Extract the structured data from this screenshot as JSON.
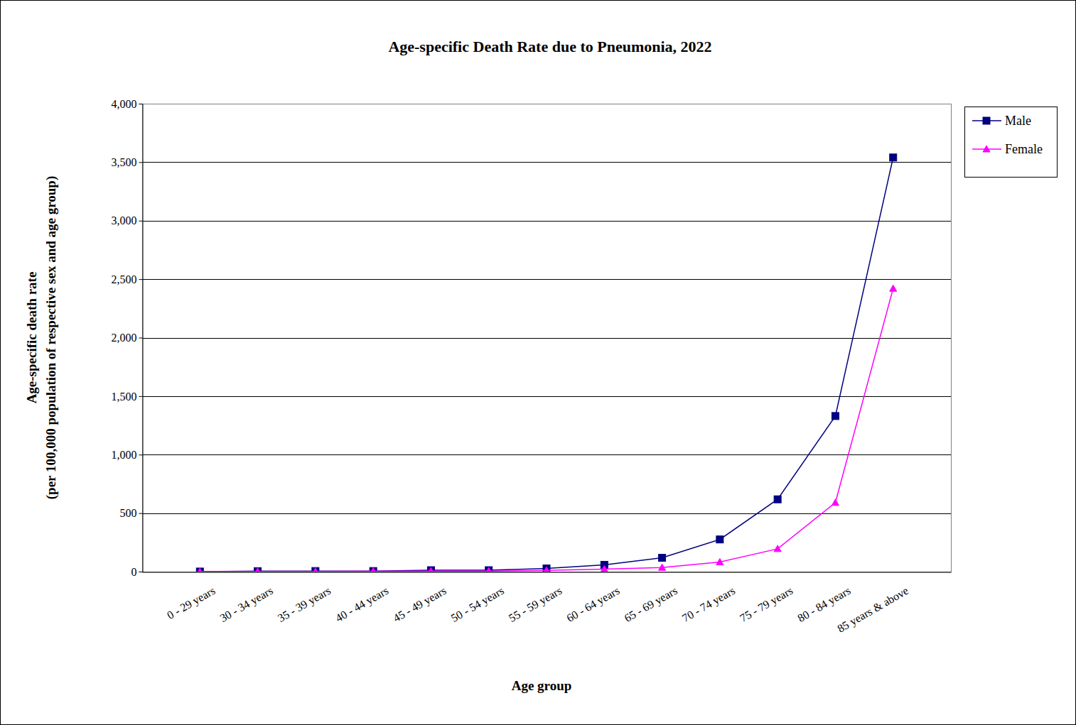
{
  "chart_data": {
    "type": "line",
    "title": "Age-specific Death Rate due to Pneumonia, 2022",
    "x_label": "Age group",
    "y_label": [
      "Age-specific death rate",
      "(per 100,000 population of respective sex and age group)"
    ],
    "categories": [
      "0 - 29 years",
      "30 - 34 years",
      "35 - 39 years",
      "40 - 44 years",
      "45 - 49 years",
      "50 - 54 years",
      "55 - 59 years",
      "60 - 64 years",
      "65 - 69 years",
      "70 - 74 years",
      "75 - 79 years",
      "80 - 84 years",
      "85 years & above"
    ],
    "series": [
      {
        "name": "Male",
        "color": "#000080",
        "marker": "square",
        "values": [
          0.5,
          4,
          5,
          5,
          12,
          12,
          27,
          58,
          118,
          275,
          618,
          1330,
          3540
        ]
      },
      {
        "name": "Female",
        "color": "#ff00ff",
        "marker": "triangle",
        "values": [
          0.3,
          2,
          2,
          3,
          5,
          5,
          10,
          22,
          35,
          82,
          195,
          590,
          2420
        ]
      }
    ],
    "ylim": [
      0,
      4000
    ],
    "yticks": [
      0,
      500,
      {
        "value": 1000,
        "label": "1,000"
      },
      {
        "value": 1500,
        "label": "1,500"
      },
      {
        "value": 2000,
        "label": "2,000"
      },
      {
        "value": 2500,
        "label": "2,500"
      },
      {
        "value": 3000,
        "label": "3,000"
      },
      {
        "value": 3500,
        "label": "3,500"
      },
      {
        "value": 4000,
        "label": "4,000"
      }
    ],
    "grid": true,
    "legend": "upper right"
  }
}
